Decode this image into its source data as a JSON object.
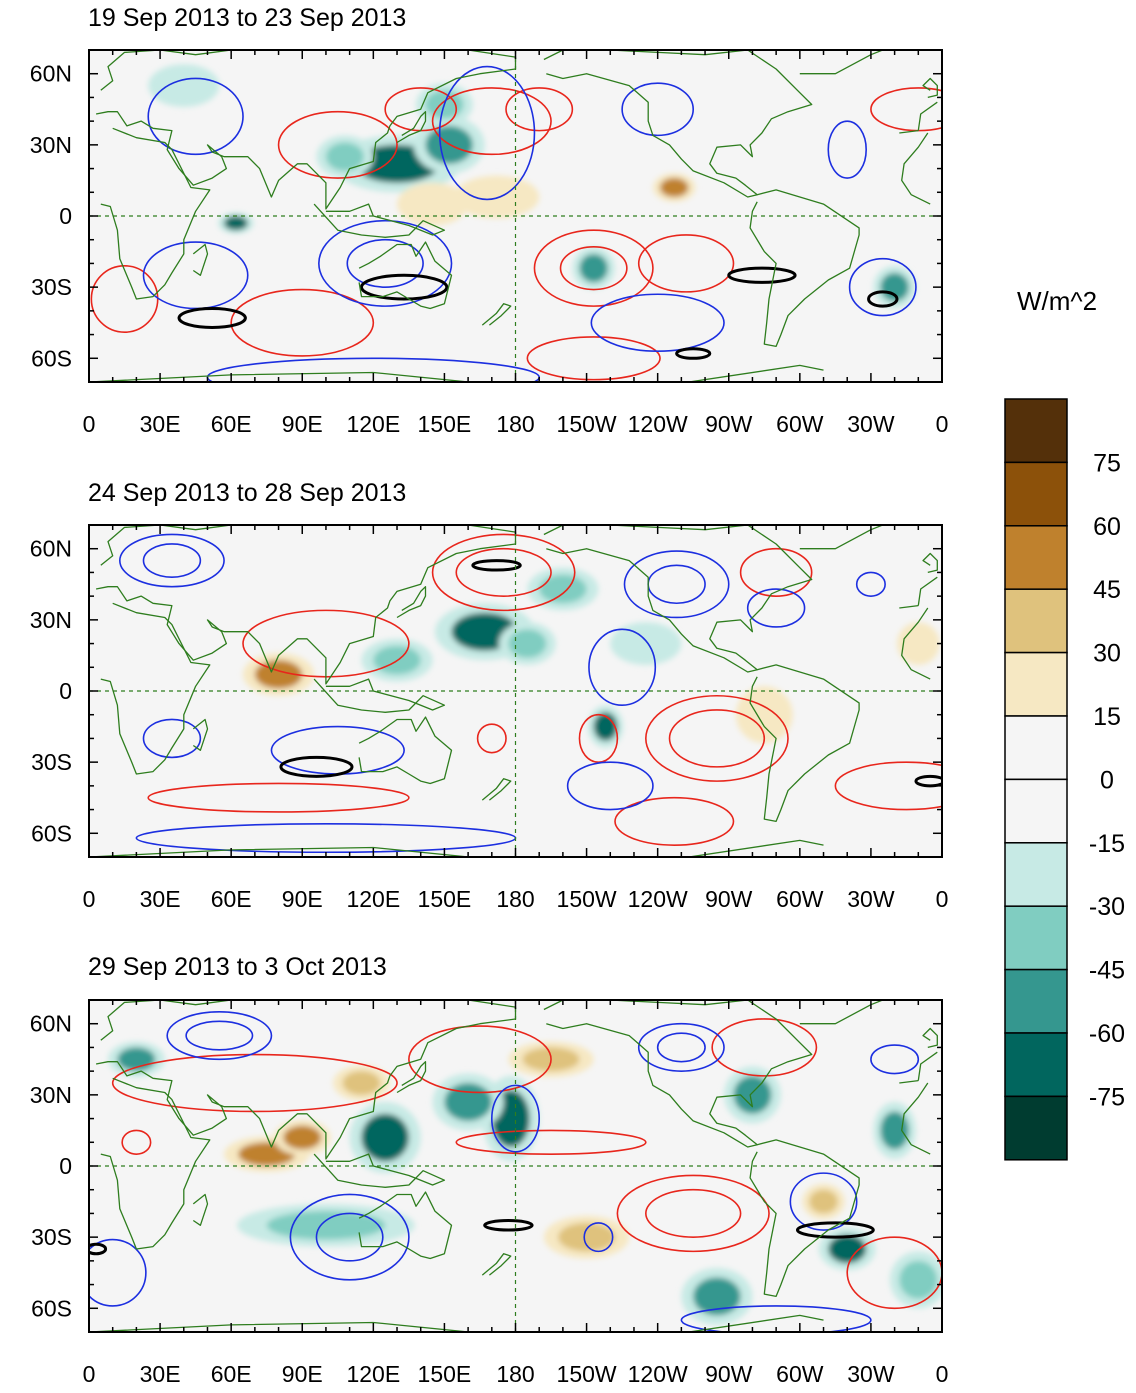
{
  "figure": {
    "colorbar": {
      "units": "W/m^2",
      "levels": [
        "75",
        "60",
        "45",
        "30",
        "15",
        "0",
        "-15",
        "-30",
        "-45",
        "-60",
        "-75"
      ],
      "colors": [
        "#54300a",
        "#8c510a",
        "#bf812d",
        "#dfc27d",
        "#f6e8c3",
        "#f5f5f5",
        "#f5f5f5",
        "#c7eae5",
        "#80cdc1",
        "#35978f",
        "#01665e",
        "#003c30"
      ]
    },
    "axes": {
      "x_ticks": [
        "0",
        "30E",
        "60E",
        "90E",
        "120E",
        "150E",
        "180",
        "150W",
        "120W",
        "90W",
        "60W",
        "30W",
        "0"
      ],
      "y_ticks": [
        "60N",
        "30N",
        "0",
        "30S",
        "60S"
      ]
    },
    "panels": [
      {
        "title": "19 Sep 2013 to 23 Sep 2013"
      },
      {
        "title": "24 Sep 2013 to 28 Sep 2013"
      },
      {
        "title": "29 Sep 2013 to 3 Oct 2013"
      }
    ],
    "style": {
      "coast_color": "#2e7d1e",
      "pos_contour_color": "#e8261c",
      "neg_contour_color": "#1c2fe0",
      "bold_contour_color": "#000000"
    }
  },
  "chart_data": [
    {
      "type": "heatmap",
      "title": "19 Sep 2013 to 23 Sep 2013",
      "units": "W/m^2",
      "xlim": [
        0,
        360
      ],
      "ylim": [
        -70,
        70
      ],
      "shading": [
        {
          "lon": 130,
          "lat": 22,
          "value": -60,
          "rx": 18,
          "ry": 8
        },
        {
          "lon": 152,
          "lat": 30,
          "value": -55,
          "rx": 10,
          "ry": 8
        },
        {
          "lon": 108,
          "lat": 25,
          "value": -40,
          "rx": 8,
          "ry": 6
        },
        {
          "lon": 62,
          "lat": -3,
          "value": -60,
          "rx": 5,
          "ry": 3
        },
        {
          "lon": 150,
          "lat": 47,
          "value": -35,
          "rx": 8,
          "ry": 6
        },
        {
          "lon": 172,
          "lat": 8,
          "value": 30,
          "rx": 12,
          "ry": 6
        },
        {
          "lon": 247,
          "lat": 12,
          "value": 50,
          "rx": 6,
          "ry": 4
        },
        {
          "lon": 213,
          "lat": -22,
          "value": -45,
          "rx": 6,
          "ry": 6
        },
        {
          "lon": 340,
          "lat": -30,
          "value": -45,
          "rx": 6,
          "ry": 6
        },
        {
          "lon": 145,
          "lat": 5,
          "value": 20,
          "rx": 10,
          "ry": 6
        },
        {
          "lon": 40,
          "lat": 55,
          "value": -25,
          "rx": 10,
          "ry": 6
        }
      ],
      "contours": [
        {
          "sign": "positive",
          "lon": 105,
          "lat": 30,
          "rx": 25,
          "ry": 14
        },
        {
          "sign": "positive",
          "lon": 140,
          "lat": 45,
          "rx": 15,
          "ry": 9
        },
        {
          "sign": "positive",
          "lon": 170,
          "lat": 40,
          "rx": 25,
          "ry": 14
        },
        {
          "sign": "positive",
          "lon": 190,
          "lat": 45,
          "rx": 14,
          "ry": 9
        },
        {
          "sign": "positive",
          "lon": 213,
          "lat": -22,
          "rx": 25,
          "ry": 16
        },
        {
          "sign": "positive",
          "lon": 213,
          "lat": -22,
          "rx": 14,
          "ry": 9
        },
        {
          "sign": "positive",
          "lon": 213,
          "lat": -60,
          "rx": 28,
          "ry": 9
        },
        {
          "sign": "positive",
          "lon": 252,
          "lat": -20,
          "rx": 20,
          "ry": 12
        },
        {
          "sign": "positive",
          "lon": 90,
          "lat": -45,
          "rx": 30,
          "ry": 14
        },
        {
          "sign": "positive",
          "lon": 15,
          "lat": -35,
          "rx": 14,
          "ry": 14
        },
        {
          "sign": "positive",
          "lon": 350,
          "lat": 45,
          "rx": 20,
          "ry": 9
        },
        {
          "sign": "negative",
          "lon": 45,
          "lat": 42,
          "rx": 20,
          "ry": 16
        },
        {
          "sign": "negative",
          "lon": 125,
          "lat": -20,
          "rx": 28,
          "ry": 18
        },
        {
          "sign": "negative",
          "lon": 125,
          "lat": -20,
          "rx": 16,
          "ry": 10
        },
        {
          "sign": "negative",
          "lon": 168,
          "lat": 35,
          "rx": 20,
          "ry": 28
        },
        {
          "sign": "negative",
          "lon": 240,
          "lat": 45,
          "rx": 15,
          "ry": 11
        },
        {
          "sign": "negative",
          "lon": 45,
          "lat": -25,
          "rx": 22,
          "ry": 14
        },
        {
          "sign": "negative",
          "lon": 240,
          "lat": -45,
          "rx": 28,
          "ry": 12
        },
        {
          "sign": "negative",
          "lon": 335,
          "lat": -30,
          "rx": 14,
          "ry": 12
        },
        {
          "sign": "negative",
          "lon": 320,
          "lat": 28,
          "rx": 8,
          "ry": 12
        },
        {
          "sign": "negative",
          "lon": 120,
          "lat": -68,
          "rx": 70,
          "ry": 8
        }
      ],
      "bold_contours": [
        {
          "lon": 133,
          "lat": -30,
          "rx": 18,
          "ry": 5
        },
        {
          "lon": 52,
          "lat": -43,
          "rx": 14,
          "ry": 4
        },
        {
          "lon": 284,
          "lat": -25,
          "rx": 14,
          "ry": 3
        },
        {
          "lon": 335,
          "lat": -35,
          "rx": 6,
          "ry": 3
        },
        {
          "lon": 255,
          "lat": -58,
          "rx": 7,
          "ry": 2
        }
      ]
    },
    {
      "type": "heatmap",
      "title": "24 Sep 2013 to 28 Sep 2013",
      "units": "W/m^2",
      "xlim": [
        0,
        360
      ],
      "ylim": [
        -70,
        70
      ],
      "shading": [
        {
          "lon": 80,
          "lat": 7,
          "value": 60,
          "rx": 10,
          "ry": 6
        },
        {
          "lon": 167,
          "lat": 25,
          "value": -60,
          "rx": 14,
          "ry": 8
        },
        {
          "lon": 185,
          "lat": 20,
          "value": -40,
          "rx": 8,
          "ry": 6
        },
        {
          "lon": 130,
          "lat": 13,
          "value": -40,
          "rx": 10,
          "ry": 6
        },
        {
          "lon": 200,
          "lat": 43,
          "value": -35,
          "rx": 10,
          "ry": 6
        },
        {
          "lon": 218,
          "lat": -15,
          "value": -60,
          "rx": 5,
          "ry": 6
        },
        {
          "lon": 350,
          "lat": 20,
          "value": 30,
          "rx": 6,
          "ry": 6
        },
        {
          "lon": 285,
          "lat": -10,
          "value": 30,
          "rx": 8,
          "ry": 8
        },
        {
          "lon": 235,
          "lat": 20,
          "value": -25,
          "rx": 10,
          "ry": 6
        }
      ],
      "contours": [
        {
          "sign": "positive",
          "lon": 100,
          "lat": 20,
          "rx": 35,
          "ry": 14
        },
        {
          "sign": "positive",
          "lon": 175,
          "lat": 50,
          "rx": 20,
          "ry": 10
        },
        {
          "sign": "positive",
          "lon": 175,
          "lat": 50,
          "rx": 30,
          "ry": 16
        },
        {
          "sign": "positive",
          "lon": 265,
          "lat": -20,
          "rx": 20,
          "ry": 12
        },
        {
          "sign": "positive",
          "lon": 265,
          "lat": -20,
          "rx": 30,
          "ry": 18
        },
        {
          "sign": "positive",
          "lon": 247,
          "lat": -55,
          "rx": 25,
          "ry": 10
        },
        {
          "sign": "positive",
          "lon": 290,
          "lat": 50,
          "rx": 15,
          "ry": 10
        },
        {
          "sign": "positive",
          "lon": 215,
          "lat": -20,
          "rx": 8,
          "ry": 10
        },
        {
          "sign": "positive",
          "lon": 80,
          "lat": -45,
          "rx": 55,
          "ry": 6
        },
        {
          "sign": "positive",
          "lon": 345,
          "lat": -40,
          "rx": 30,
          "ry": 10
        },
        {
          "sign": "positive",
          "lon": 170,
          "lat": -20,
          "rx": 6,
          "ry": 6
        },
        {
          "sign": "negative",
          "lon": 35,
          "lat": 55,
          "rx": 12,
          "ry": 7
        },
        {
          "sign": "negative",
          "lon": 35,
          "lat": 55,
          "rx": 22,
          "ry": 11
        },
        {
          "sign": "negative",
          "lon": 35,
          "lat": -20,
          "rx": 12,
          "ry": 8
        },
        {
          "sign": "negative",
          "lon": 105,
          "lat": -25,
          "rx": 28,
          "ry": 10
        },
        {
          "sign": "negative",
          "lon": 248,
          "lat": 45,
          "rx": 12,
          "ry": 8
        },
        {
          "sign": "negative",
          "lon": 248,
          "lat": 45,
          "rx": 22,
          "ry": 14
        },
        {
          "sign": "negative",
          "lon": 290,
          "lat": 35,
          "rx": 12,
          "ry": 8
        },
        {
          "sign": "negative",
          "lon": 220,
          "lat": -40,
          "rx": 18,
          "ry": 10
        },
        {
          "sign": "negative",
          "lon": 225,
          "lat": 10,
          "rx": 14,
          "ry": 16
        },
        {
          "sign": "negative",
          "lon": 330,
          "lat": 45,
          "rx": 6,
          "ry": 5
        },
        {
          "sign": "negative",
          "lon": 100,
          "lat": -62,
          "rx": 80,
          "ry": 6
        }
      ],
      "bold_contours": [
        {
          "lon": 96,
          "lat": -32,
          "rx": 15,
          "ry": 4
        },
        {
          "lon": 172,
          "lat": 53,
          "rx": 10,
          "ry": 2
        },
        {
          "lon": 355,
          "lat": -38,
          "rx": 6,
          "ry": 2
        }
      ]
    },
    {
      "type": "heatmap",
      "title": "29 Sep 2013 to 3 Oct 2013",
      "units": "W/m^2",
      "xlim": [
        0,
        360
      ],
      "ylim": [
        -70,
        70
      ],
      "shading": [
        {
          "lon": 125,
          "lat": 12,
          "value": -70,
          "rx": 10,
          "ry": 10
        },
        {
          "lon": 178,
          "lat": 20,
          "value": -70,
          "rx": 8,
          "ry": 12
        },
        {
          "lon": 160,
          "lat": 27,
          "value": -55,
          "rx": 10,
          "ry": 8
        },
        {
          "lon": 75,
          "lat": 5,
          "value": 50,
          "rx": 12,
          "ry": 5
        },
        {
          "lon": 90,
          "lat": 12,
          "value": 50,
          "rx": 8,
          "ry": 5
        },
        {
          "lon": 320,
          "lat": -35,
          "value": -60,
          "rx": 8,
          "ry": 6
        },
        {
          "lon": 310,
          "lat": -15,
          "value": 45,
          "rx": 6,
          "ry": 5
        },
        {
          "lon": 210,
          "lat": -30,
          "value": 35,
          "rx": 12,
          "ry": 6
        },
        {
          "lon": 100,
          "lat": -25,
          "value": -35,
          "rx": 25,
          "ry": 6
        },
        {
          "lon": 265,
          "lat": -55,
          "value": -50,
          "rx": 10,
          "ry": 8
        },
        {
          "lon": 350,
          "lat": -48,
          "value": -40,
          "rx": 8,
          "ry": 8
        },
        {
          "lon": 20,
          "lat": 45,
          "value": -50,
          "rx": 8,
          "ry": 5
        },
        {
          "lon": 115,
          "lat": 35,
          "value": 40,
          "rx": 8,
          "ry": 5
        },
        {
          "lon": 195,
          "lat": 45,
          "value": 35,
          "rx": 12,
          "ry": 5
        },
        {
          "lon": 280,
          "lat": 30,
          "value": -55,
          "rx": 8,
          "ry": 8
        },
        {
          "lon": 340,
          "lat": 15,
          "value": -45,
          "rx": 6,
          "ry": 8
        }
      ],
      "contours": [
        {
          "sign": "positive",
          "lon": 70,
          "lat": 35,
          "rx": 60,
          "ry": 12
        },
        {
          "sign": "positive",
          "lon": 165,
          "lat": 45,
          "rx": 30,
          "ry": 14
        },
        {
          "sign": "positive",
          "lon": 285,
          "lat": 50,
          "rx": 22,
          "ry": 12
        },
        {
          "sign": "positive",
          "lon": 255,
          "lat": -20,
          "rx": 32,
          "ry": 16
        },
        {
          "sign": "positive",
          "lon": 255,
          "lat": -20,
          "rx": 20,
          "ry": 10
        },
        {
          "sign": "positive",
          "lon": 340,
          "lat": -45,
          "rx": 20,
          "ry": 15
        },
        {
          "sign": "positive",
          "lon": 195,
          "lat": 10,
          "rx": 40,
          "ry": 5
        },
        {
          "sign": "positive",
          "lon": 20,
          "lat": 10,
          "rx": 6,
          "ry": 5
        },
        {
          "sign": "negative",
          "lon": 55,
          "lat": 55,
          "rx": 22,
          "ry": 10
        },
        {
          "sign": "negative",
          "lon": 55,
          "lat": 55,
          "rx": 14,
          "ry": 6
        },
        {
          "sign": "negative",
          "lon": 110,
          "lat": -30,
          "rx": 25,
          "ry": 18
        },
        {
          "sign": "negative",
          "lon": 110,
          "lat": -30,
          "rx": 14,
          "ry": 10
        },
        {
          "sign": "negative",
          "lon": 250,
          "lat": 50,
          "rx": 18,
          "ry": 10
        },
        {
          "sign": "negative",
          "lon": 250,
          "lat": 50,
          "rx": 10,
          "ry": 6
        },
        {
          "sign": "negative",
          "lon": 310,
          "lat": -15,
          "rx": 14,
          "ry": 12
        },
        {
          "sign": "negative",
          "lon": 180,
          "lat": 20,
          "rx": 10,
          "ry": 14
        },
        {
          "sign": "negative",
          "lon": 340,
          "lat": 45,
          "rx": 10,
          "ry": 6
        },
        {
          "sign": "negative",
          "lon": 215,
          "lat": -30,
          "rx": 6,
          "ry": 6
        },
        {
          "sign": "negative",
          "lon": 290,
          "lat": -65,
          "rx": 40,
          "ry": 6
        },
        {
          "sign": "negative",
          "lon": 10,
          "lat": -45,
          "rx": 14,
          "ry": 14
        }
      ],
      "bold_contours": [
        {
          "lon": 177,
          "lat": -25,
          "rx": 10,
          "ry": 2
        },
        {
          "lon": 315,
          "lat": -27,
          "rx": 16,
          "ry": 3
        },
        {
          "lon": 3,
          "lat": -35,
          "rx": 4,
          "ry": 2
        }
      ]
    }
  ]
}
